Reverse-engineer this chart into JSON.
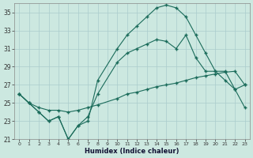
{
  "xlabel": "Humidex (Indice chaleur)",
  "background_color": "#cce8e0",
  "grid_color": "#aacccc",
  "line_color": "#1a6b5a",
  "xlim": [
    -0.5,
    23.5
  ],
  "ylim": [
    21,
    36
  ],
  "yticks": [
    21,
    23,
    25,
    27,
    29,
    31,
    33,
    35
  ],
  "xticks": [
    0,
    1,
    2,
    3,
    4,
    5,
    6,
    7,
    8,
    9,
    10,
    11,
    12,
    13,
    14,
    15,
    16,
    17,
    18,
    19,
    20,
    21,
    22,
    23
  ],
  "line1_x": [
    0,
    1,
    2,
    3,
    4,
    5,
    6,
    7,
    8,
    10,
    11,
    12,
    13,
    14,
    15,
    16,
    17,
    18,
    19,
    20,
    21,
    22,
    23
  ],
  "line1_y": [
    26.0,
    25.0,
    24.0,
    23.0,
    23.5,
    21.0,
    22.5,
    23.0,
    27.5,
    31.0,
    32.5,
    33.5,
    34.5,
    35.5,
    35.8,
    35.5,
    34.5,
    32.5,
    30.5,
    28.5,
    27.5,
    26.5,
    27.0
  ],
  "line2_x": [
    0,
    1,
    2,
    3,
    4,
    5,
    6,
    7,
    8,
    10,
    11,
    12,
    13,
    14,
    15,
    16,
    17,
    18,
    19,
    20,
    21,
    22,
    23
  ],
  "line2_y": [
    26.0,
    25.0,
    24.0,
    23.0,
    23.5,
    21.0,
    22.5,
    23.5,
    26.0,
    29.5,
    30.5,
    31.0,
    31.5,
    32.0,
    31.8,
    31.0,
    32.5,
    30.0,
    28.5,
    28.5,
    28.5,
    26.5,
    24.5
  ],
  "line3_x": [
    0,
    1,
    2,
    3,
    4,
    5,
    6,
    7,
    8,
    10,
    11,
    12,
    13,
    14,
    15,
    16,
    17,
    18,
    19,
    20,
    21,
    22,
    23
  ],
  "line3_y": [
    26.0,
    25.0,
    24.5,
    24.2,
    24.2,
    24.0,
    24.2,
    24.5,
    24.8,
    25.5,
    26.0,
    26.2,
    26.5,
    26.8,
    27.0,
    27.2,
    27.5,
    27.8,
    28.0,
    28.2,
    28.4,
    28.5,
    27.0
  ]
}
